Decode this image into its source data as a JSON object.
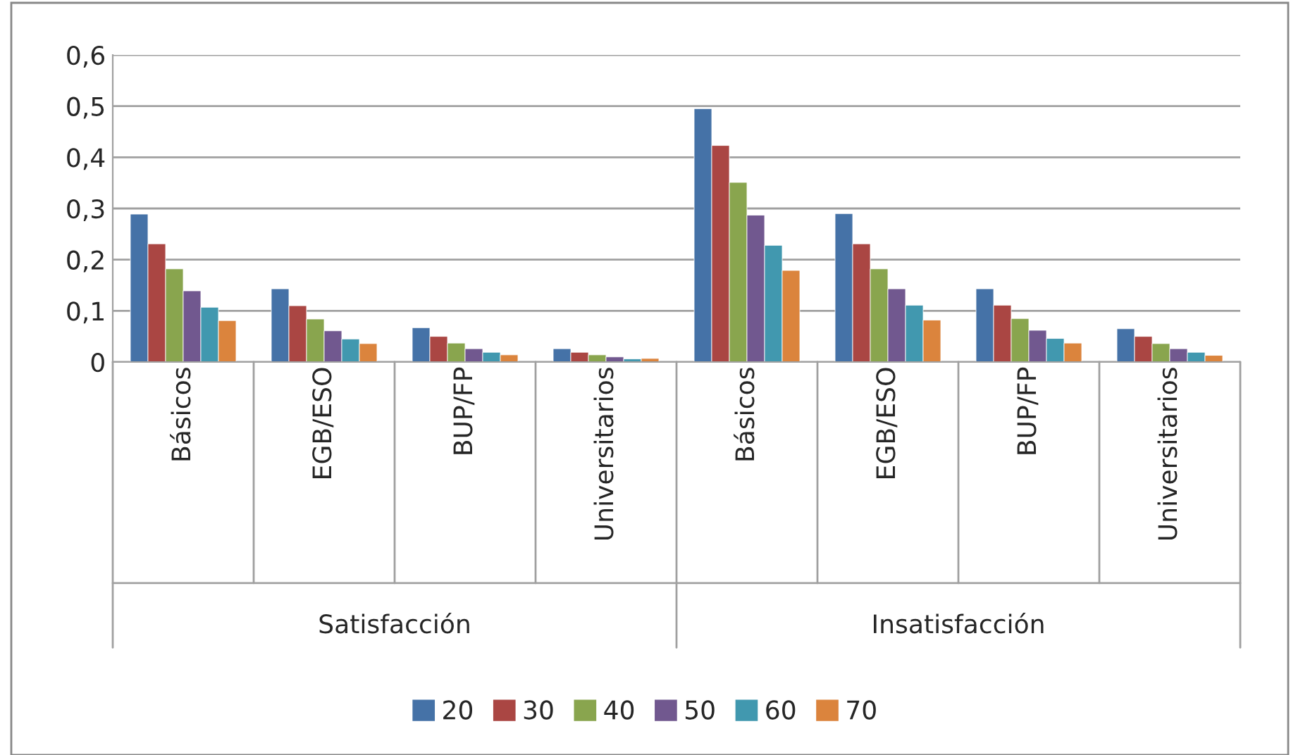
{
  "chart_data": {
    "type": "bar",
    "categories": [
      "Básicos",
      "EGB/ESO",
      "BUP/FP",
      "Universitarios",
      "Básicos",
      "EGB/ESO",
      "BUP/FP",
      "Universitarios"
    ],
    "annotations": [
      "Satisfacción",
      "Insatisfacción"
    ],
    "series": [
      {
        "name": "20",
        "color": "#4572a7",
        "values": [
          0.289,
          0.143,
          0.067,
          0.026,
          0.495,
          0.29,
          0.143,
          0.065
        ]
      },
      {
        "name": "30",
        "color": "#aa4643",
        "values": [
          0.231,
          0.11,
          0.05,
          0.019,
          0.423,
          0.231,
          0.111,
          0.05
        ]
      },
      {
        "name": "40",
        "color": "#89a54e",
        "values": [
          0.182,
          0.084,
          0.037,
          0.014,
          0.351,
          0.182,
          0.085,
          0.036
        ]
      },
      {
        "name": "50",
        "color": "#71588f",
        "values": [
          0.139,
          0.061,
          0.026,
          0.01,
          0.287,
          0.143,
          0.062,
          0.026
        ]
      },
      {
        "name": "60",
        "color": "#4198af",
        "values": [
          0.107,
          0.045,
          0.019,
          0.006,
          0.228,
          0.111,
          0.046,
          0.019
        ]
      },
      {
        "name": "70",
        "color": "#db843d",
        "values": [
          0.081,
          0.036,
          0.014,
          0.007,
          0.179,
          0.082,
          0.037,
          0.013
        ]
      }
    ],
    "ylim": [
      0,
      0.6
    ],
    "yticks": [
      0,
      {
        "value": 0.1,
        "label": "0,1"
      },
      {
        "value": 0.2,
        "label": "0,2"
      },
      {
        "value": 0.3,
        "label": "0,3"
      },
      {
        "value": 0.4,
        "label": "0,4"
      },
      {
        "value": 0.5,
        "label": "0,5"
      },
      {
        "value": 0.6,
        "label": "0,6"
      }
    ],
    "grid": "y",
    "legend": "bottom"
  }
}
